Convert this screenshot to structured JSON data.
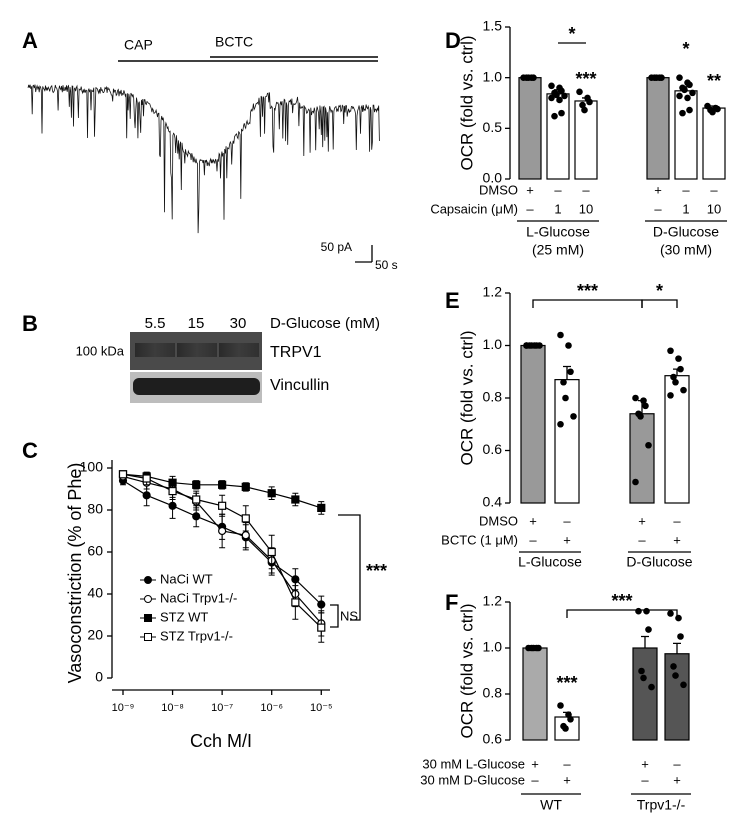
{
  "chart_data": [
    {
      "type": "trace",
      "panel_label": "A",
      "annotations": [
        "CAP",
        "BCTC"
      ],
      "scale_labels": [
        "50 pA",
        "50 s"
      ]
    },
    {
      "type": "blot",
      "panel_label": "B",
      "lanes": [
        "5.5",
        "15",
        "30"
      ],
      "lane_title": "D-Glucose (mM)",
      "marker": "100 kDa",
      "bands": [
        "TRPV1",
        "Vincullin"
      ]
    },
    {
      "type": "line",
      "panel_label": "C",
      "ylabel": "Vasoconstriction (% of Phe)",
      "xlabel": "Cch M/I",
      "log_x": true,
      "xlim": [
        6e-10,
        1.5e-05
      ],
      "ylim": [
        0,
        100
      ],
      "xticks": [
        {
          "value": 1e-09,
          "label": "10⁻⁹"
        },
        {
          "value": 1e-08,
          "label": "10⁻⁸"
        },
        {
          "value": 1e-07,
          "label": "10⁻⁷"
        },
        {
          "value": 1e-06,
          "label": "10⁻⁶"
        },
        {
          "value": 1e-05,
          "label": "10⁻⁵"
        }
      ],
      "yticks": [
        0,
        20,
        40,
        60,
        80,
        100
      ],
      "x": [
        1e-09,
        3e-09,
        1e-08,
        3e-08,
        1e-07,
        3e-07,
        1e-06,
        3e-06,
        1e-05
      ],
      "legend": "lower left",
      "series": [
        {
          "name": "NaCi WT",
          "marker": "circle",
          "color": "#000000",
          "values": [
            94,
            87,
            82,
            77,
            72,
            67,
            55,
            47,
            35
          ],
          "errors": [
            2,
            5,
            6,
            5,
            6,
            6,
            6,
            5,
            4
          ]
        },
        {
          "name": "NaCi Trpv1-/-",
          "marker": "circle-open",
          "color": "#000000",
          "values": [
            96,
            93,
            90,
            84,
            70,
            68,
            56,
            40,
            26
          ],
          "errors": [
            2,
            3,
            4,
            4,
            8,
            6,
            6,
            6,
            6
          ]
        },
        {
          "name": "STZ WT",
          "marker": "square",
          "color": "#000000",
          "values": [
            97,
            96,
            93,
            92,
            92,
            91,
            88,
            85,
            81
          ],
          "errors": [
            1,
            2,
            3,
            2,
            2,
            2,
            3,
            3,
            3
          ]
        },
        {
          "name": "STZ Trpv1-/-",
          "marker": "square-open",
          "color": "#000000",
          "values": [
            97,
            95,
            89,
            85,
            82,
            76,
            60,
            36,
            24
          ],
          "errors": [
            1,
            3,
            4,
            4,
            5,
            6,
            8,
            8,
            7
          ]
        }
      ],
      "annotations": [
        "***",
        "NS"
      ]
    },
    {
      "type": "bar",
      "panel_label": "D",
      "ylabel": "OCR (fold vs. ctrl)",
      "ylim": [
        0,
        1.5
      ],
      "yticks": [
        {
          "value": 0,
          "label": "0.0"
        },
        {
          "value": 0.5,
          "label": "0.5"
        },
        {
          "value": 1,
          "label": "1.0"
        },
        {
          "value": 1.5,
          "label": "1.5"
        }
      ],
      "values": [
        1.0,
        0.84,
        0.77,
        1.0,
        0.87,
        0.7
      ],
      "errors": [
        0,
        0.04,
        0.03,
        0,
        0.04,
        0.02
      ],
      "colors": [
        "#999999",
        "#ffffff",
        "#ffffff",
        "#999999",
        "#ffffff",
        "#ffffff"
      ],
      "points": [
        [
          1,
          1,
          1,
          1,
          1
        ],
        [
          0.92,
          0.9,
          0.87,
          0.85,
          0.83,
          0.82,
          0.8,
          0.78,
          0.65,
          0.62
        ],
        [
          0.86,
          0.8,
          0.76,
          0.73,
          0.68
        ],
        [
          1,
          1,
          1,
          1,
          1
        ],
        [
          1.0,
          0.95,
          0.93,
          0.9,
          0.88,
          0.85,
          0.82,
          0.8,
          0.68,
          0.65
        ],
        [
          0.72,
          0.7,
          0.69,
          0.68,
          0.66
        ]
      ],
      "rows": [
        {
          "label": "DMSO",
          "marks": [
            "+",
            "–",
            "–",
            "+",
            "–",
            "–"
          ]
        },
        {
          "label": "Capsaicin (μM)",
          "marks": [
            "–",
            "1",
            "10",
            "–",
            "1",
            "10"
          ]
        }
      ],
      "groups": [
        [
          "L-Glucose",
          "(25 mM)"
        ],
        [
          "D-Glucose",
          "(30 mM)"
        ]
      ],
      "significance": [
        "*",
        "***",
        "*",
        "**"
      ]
    },
    {
      "type": "bar",
      "panel_label": "E",
      "ylabel": "OCR (fold vs. ctrl)",
      "ylim": [
        0.4,
        1.2
      ],
      "yticks": [
        0.4,
        0.6,
        0.8,
        {
          "value": 1,
          "label": "1.0"
        },
        1.2
      ],
      "values": [
        1.0,
        0.87,
        0.74,
        0.885
      ],
      "errors": [
        0,
        0.05,
        0.05,
        0.025
      ],
      "colors": [
        "#999999",
        "#ffffff",
        "#999999",
        "#ffffff"
      ],
      "points": [
        [
          1,
          1,
          1,
          1,
          1,
          1,
          1
        ],
        [
          1.04,
          1.0,
          0.9,
          0.86,
          0.8,
          0.73,
          0.7
        ],
        [
          0.8,
          0.79,
          0.77,
          0.74,
          0.73,
          0.62,
          0.48
        ],
        [
          0.98,
          0.95,
          0.91,
          0.88,
          0.86,
          0.83,
          0.81
        ]
      ],
      "rows": [
        {
          "label": "DMSO",
          "marks": [
            "+",
            "–",
            "+",
            "–"
          ]
        },
        {
          "label": "BCTC (1 μM)",
          "marks": [
            "–",
            "+",
            "–",
            "+"
          ]
        }
      ],
      "groups": [
        [
          "L-Glucose"
        ],
        [
          "D-Glucose"
        ]
      ],
      "significance": [
        "***",
        "*"
      ]
    },
    {
      "type": "bar",
      "panel_label": "F",
      "ylabel": "OCR (fold vs. ctrl)",
      "ylim": [
        0.6,
        1.2
      ],
      "yticks": [
        0.6,
        0.8,
        {
          "value": 1,
          "label": "1.0"
        },
        1.2
      ],
      "values": [
        1.0,
        0.7,
        1.0,
        0.975
      ],
      "errors": [
        0,
        0.02,
        0.05,
        0.045
      ],
      "colors": [
        "#aaaaaa",
        "#ffffff",
        "#555555",
        "#555555"
      ],
      "points": [
        [
          1,
          1,
          1,
          1,
          1
        ],
        [
          0.75,
          0.71,
          0.69,
          0.66,
          0.65
        ],
        [
          1.16,
          1.16,
          1.08,
          0.9,
          0.87,
          0.83
        ],
        [
          1.15,
          1.13,
          1.05,
          0.92,
          0.88,
          0.84
        ]
      ],
      "rows": [
        {
          "label": "30 mM L-Glucose",
          "marks": [
            "+",
            "–",
            "+",
            "–"
          ]
        },
        {
          "label": "30 mM D-Glucose",
          "marks": [
            "–",
            "+",
            "–",
            "+"
          ]
        }
      ],
      "groups": [
        [
          "WT"
        ],
        [
          "Trpv1-/-"
        ]
      ],
      "significance": [
        "***",
        "***"
      ]
    }
  ]
}
